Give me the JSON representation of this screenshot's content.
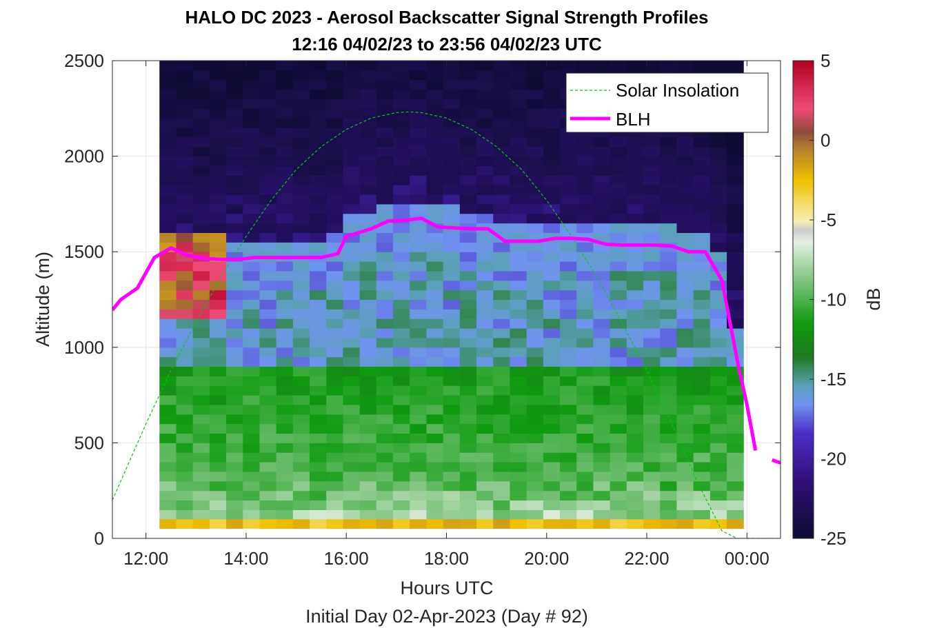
{
  "chart_data": {
    "type": "heatmap",
    "title": "HALO DC 2023 - Aerosol Backscatter Signal Strength Profiles",
    "subtitle": "12:16 04/02/23 to 23:56 04/02/23  UTC",
    "xlabel": "Hours UTC",
    "footer": "Initial Day 02-Apr-2023 (Day # 92)",
    "ylabel": "Altitude (m)",
    "colorbar_label": "dB",
    "xlim": [
      11.33,
      24.67
    ],
    "ylim": [
      0,
      2500
    ],
    "x_ticks": [
      12,
      14,
      16,
      18,
      20,
      22,
      24
    ],
    "x_tick_labels": [
      "12:00",
      "14:00",
      "16:00",
      "18:00",
      "20:00",
      "22:00",
      "00:00"
    ],
    "y_ticks": [
      0,
      500,
      1000,
      1500,
      2000,
      2500
    ],
    "y_tick_labels": [
      "0",
      "500",
      "1000",
      "1500",
      "2000",
      "2500"
    ],
    "colorbar_range": [
      -25,
      5
    ],
    "colorbar_ticks": [
      5,
      0,
      -5,
      -10,
      -15,
      -20,
      -25
    ],
    "colorbar_tick_labels": [
      "5",
      "0",
      "-5",
      "-10",
      "-15",
      "-20",
      "-25"
    ],
    "grid": true,
    "legend_position": "top-right",
    "heatmap": {
      "x_start": 12.27,
      "x_end": 23.93,
      "y_start": 100,
      "y_end": 2500,
      "n_cols": 35,
      "n_rows": 48
    },
    "series": [
      {
        "name": "Solar Insolation",
        "style": "dashed",
        "color": "#00cc00",
        "x": [
          11.33,
          12.0,
          12.5,
          13.0,
          13.5,
          14.0,
          14.5,
          15.0,
          15.5,
          16.0,
          16.5,
          17.0,
          17.25,
          17.5,
          18.0,
          18.5,
          19.0,
          19.5,
          20.0,
          20.5,
          21.0,
          21.5,
          22.0,
          22.5,
          23.0,
          23.5,
          23.8,
          24.67
        ],
        "y": [
          200,
          600,
          880,
          1130,
          1370,
          1580,
          1770,
          1930,
          2050,
          2140,
          2200,
          2228,
          2232,
          2228,
          2200,
          2140,
          2050,
          1930,
          1770,
          1580,
          1370,
          1130,
          880,
          600,
          300,
          40,
          0,
          0
        ]
      },
      {
        "name": "BLH",
        "style": "solid",
        "color": "#ff00ff",
        "x": [
          11.33,
          11.5,
          11.83,
          12.17,
          12.5,
          12.83,
          13.17,
          13.5,
          13.83,
          14.17,
          14.5,
          14.83,
          15.17,
          15.5,
          15.83,
          16.0,
          16.5,
          16.83,
          17.17,
          17.5,
          17.83,
          18.17,
          18.5,
          18.83,
          19.17,
          19.5,
          19.83,
          20.17,
          20.5,
          20.83,
          21.17,
          21.5,
          21.83,
          22.17,
          22.5,
          22.83,
          23.17,
          23.5,
          23.83,
          24.0,
          24.17
        ],
        "y": [
          1195,
          1250,
          1310,
          1470,
          1520,
          1480,
          1465,
          1460,
          1460,
          1470,
          1470,
          1470,
          1470,
          1470,
          1490,
          1580,
          1620,
          1660,
          1665,
          1675,
          1630,
          1625,
          1620,
          1620,
          1555,
          1555,
          1555,
          1570,
          1570,
          1565,
          1540,
          1535,
          1535,
          1535,
          1530,
          1500,
          1500,
          1350,
          900,
          700,
          460
        ]
      },
      {
        "name": "",
        "style": "solid",
        "color": "#ff00ff",
        "x": [
          24.5,
          24.67
        ],
        "y": [
          410,
          395
        ]
      }
    ],
    "legend": [
      "Solar Insolation",
      "BLH"
    ]
  }
}
